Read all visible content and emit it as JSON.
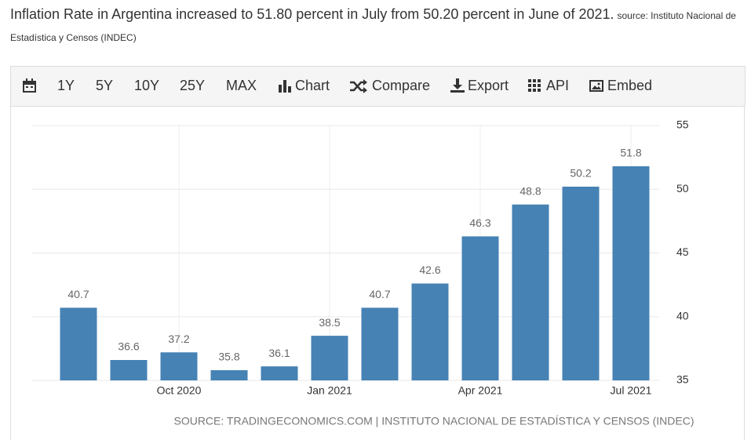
{
  "header": {
    "title": "Inflation Rate in Argentina increased to 51.80 percent in July from 50.20 percent in June of 2021.",
    "source": "source: Instituto Nacional de Estadística y Censos (INDEC)"
  },
  "toolbar": [
    "1Y",
    "5Y",
    "10Y",
    "25Y",
    "MAX",
    "Chart",
    "Compare",
    "Export",
    "API",
    "Embed"
  ],
  "chart_data": {
    "type": "bar",
    "categories": [
      null,
      null,
      "Oct 2020",
      null,
      null,
      "Jan 2021",
      null,
      null,
      "Apr 2021",
      null,
      null,
      "Jul 2021"
    ],
    "values": [
      40.7,
      36.6,
      37.2,
      35.8,
      36.1,
      38.5,
      40.7,
      42.6,
      46.3,
      48.8,
      50.2,
      51.8
    ],
    "color": "#4682b4",
    "ylim": [
      35,
      55
    ],
    "yticks": [
      35,
      40,
      45,
      50,
      55
    ],
    "grid": true,
    "source": "SOURCE: TRADINGECONOMICS.COM | INSTITUTO NACIONAL DE ESTADÍSTICA Y CENSOS (INDEC)"
  }
}
